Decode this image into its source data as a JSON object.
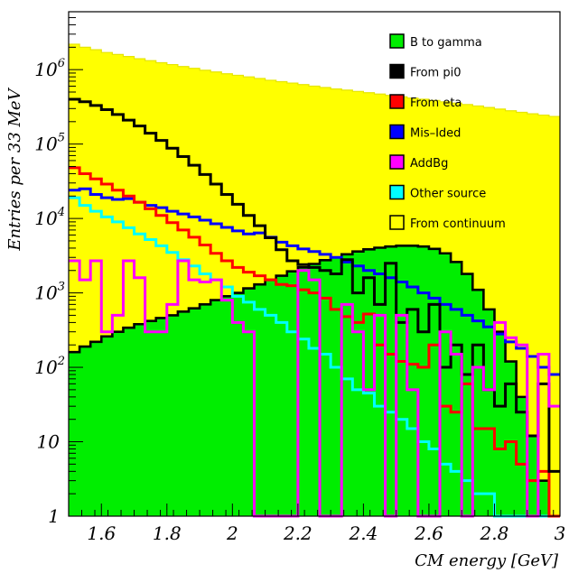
{
  "chart_data": {
    "type": "histogram",
    "ylog": true,
    "xlabel": "CM energy [GeV]",
    "ylabel": "Entries per 33 MeV",
    "xlim": [
      1.5,
      3.0
    ],
    "ylim": [
      1,
      6000000
    ],
    "x_ticks": [
      {
        "value": 1.6,
        "label": "1.6"
      },
      {
        "value": 1.8,
        "label": "1.8"
      },
      {
        "value": 2.0,
        "label": "2"
      },
      {
        "value": 2.2,
        "label": "2.2"
      },
      {
        "value": 2.4,
        "label": "2.4"
      },
      {
        "value": 2.6,
        "label": "2.6"
      },
      {
        "value": 2.8,
        "label": "2.8"
      },
      {
        "value": 3.0,
        "label": "3"
      }
    ],
    "y_ticks": [
      {
        "value": 1,
        "label": "1",
        "sup": ""
      },
      {
        "value": 10,
        "label": "10",
        "sup": ""
      },
      {
        "value": 100,
        "label": "10",
        "sup": "2"
      },
      {
        "value": 1000,
        "label": "10",
        "sup": "3"
      },
      {
        "value": 10000,
        "label": "10",
        "sup": "4"
      },
      {
        "value": 100000,
        "label": "10",
        "sup": "5"
      },
      {
        "value": 1000000,
        "label": "10",
        "sup": "6"
      }
    ],
    "bins": {
      "start": 1.5,
      "width": 0.0333,
      "count": 45
    },
    "series": [
      {
        "name": "From continuum",
        "fill": "#ffff00",
        "stroke": "#e6e600",
        "kind": "fill",
        "values": [
          2200000,
          2000000,
          1850000,
          1700000,
          1600000,
          1500000,
          1400000,
          1320000,
          1240000,
          1170000,
          1100000,
          1040000,
          980000,
          930000,
          880000,
          840000,
          800000,
          760000,
          720000,
          690000,
          660000,
          630000,
          600000,
          575000,
          550000,
          530000,
          510000,
          490000,
          470000,
          450000,
          430000,
          415000,
          400000,
          385000,
          370000,
          355000,
          340000,
          325000,
          310000,
          295000,
          280000,
          267000,
          255000,
          245000,
          235000
        ]
      },
      {
        "name": "B to gamma",
        "fill": "#00ee00",
        "stroke": "#000000",
        "kind": "fill",
        "values": [
          160,
          190,
          220,
          260,
          300,
          340,
          380,
          420,
          460,
          500,
          560,
          620,
          700,
          800,
          900,
          1000,
          1150,
          1300,
          1500,
          1700,
          1950,
          2200,
          2450,
          2750,
          3000,
          3300,
          3600,
          3850,
          4050,
          4200,
          4300,
          4300,
          4200,
          3900,
          3400,
          2600,
          1800,
          1100,
          600,
          300,
          120,
          40,
          12,
          3,
          1
        ]
      },
      {
        "name": "From pi0",
        "fill": "none",
        "stroke": "#000000",
        "kind": "line",
        "values": [
          400000,
          370000,
          330000,
          290000,
          250000,
          210000,
          175000,
          140000,
          112000,
          88000,
          68000,
          52000,
          39000,
          29000,
          21000,
          15500,
          11000,
          8000,
          5500,
          3800,
          2700,
          2400,
          2200,
          2000,
          1800,
          2800,
          1000,
          1600,
          700,
          2500,
          400,
          600,
          300,
          700,
          100,
          200,
          80,
          200,
          50,
          30,
          60,
          25,
          12,
          60,
          4
        ]
      },
      {
        "name": "From eta",
        "fill": "none",
        "stroke": "#ff0000",
        "kind": "line",
        "values": [
          48000,
          40000,
          34000,
          29000,
          24000,
          20000,
          16500,
          13500,
          11000,
          8800,
          7000,
          5600,
          4400,
          3400,
          2700,
          2200,
          1900,
          1700,
          1500,
          1300,
          1250,
          1100,
          1000,
          850,
          600,
          480,
          400,
          520,
          200,
          150,
          120,
          110,
          100,
          200,
          30,
          25,
          60,
          15,
          15,
          8,
          10,
          5,
          3,
          4,
          1
        ]
      },
      {
        "name": "Mis-Ided",
        "fill": "none",
        "stroke": "#0000ff",
        "kind": "line",
        "values": [
          24000,
          25000,
          21000,
          19000,
          18000,
          18500,
          16500,
          15000,
          14000,
          12500,
          11500,
          10500,
          9500,
          8500,
          7600,
          6800,
          6200,
          6400,
          5600,
          4800,
          4300,
          3900,
          3600,
          3300,
          3000,
          2600,
          2300,
          2000,
          1800,
          1600,
          1400,
          1200,
          1000,
          850,
          700,
          600,
          500,
          420,
          350,
          280,
          220,
          180,
          140,
          100,
          80
        ]
      },
      {
        "name": "AddBg",
        "fill": "none",
        "stroke": "#ff00ff",
        "kind": "line",
        "values": [
          2700,
          1500,
          2700,
          300,
          500,
          2700,
          1600,
          300,
          300,
          700,
          2700,
          1500,
          1400,
          1500,
          800,
          400,
          300,
          1,
          1,
          1,
          1,
          2000,
          1500,
          1,
          1,
          700,
          300,
          50,
          500,
          1,
          500,
          50,
          1,
          1,
          300,
          150,
          1,
          100,
          50,
          400,
          250,
          200,
          1,
          150,
          30
        ]
      },
      {
        "name": "Other source",
        "fill": "none",
        "stroke": "#00ffff",
        "kind": "line",
        "values": [
          19000,
          15000,
          12500,
          10500,
          9000,
          7500,
          6200,
          5200,
          4300,
          3500,
          2800,
          2300,
          1800,
          1500,
          1200,
          900,
          750,
          600,
          500,
          400,
          300,
          240,
          180,
          150,
          100,
          70,
          50,
          45,
          30,
          25,
          20,
          15,
          10,
          8,
          5,
          4,
          3,
          2,
          2,
          1,
          1,
          1,
          1,
          1,
          1
        ]
      }
    ],
    "legend": {
      "placement": "top-right",
      "entries": [
        {
          "label": "B to gamma",
          "color": "#00ee00"
        },
        {
          "label": "From pi0",
          "color": "#000000"
        },
        {
          "label": "From eta",
          "color": "#ff0000"
        },
        {
          "label": "Mis–Ided",
          "color": "#0000ff"
        },
        {
          "label": "AddBg",
          "color": "#ff00ff"
        },
        {
          "label": "Other source",
          "color": "#00ffff"
        },
        {
          "label": "From continuum",
          "color": "#ffff00"
        }
      ]
    }
  }
}
